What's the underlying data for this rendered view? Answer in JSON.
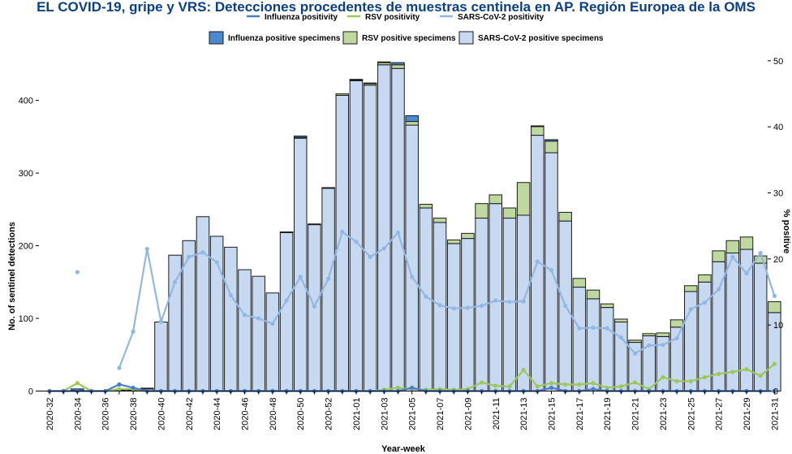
{
  "title": "EL COVID-19, gripe y VRS: Detecciones procedentes de muestras centinela en AP. Región Europea de la OMS",
  "chart_data": {
    "type": "bar",
    "stacked": true,
    "xlabel": "Year-week",
    "ylabel": "No. of sentinel detections",
    "y2label": "% positive",
    "ylim": [
      0,
      470
    ],
    "y2lim": [
      0,
      51.7
    ],
    "yticks": [
      0,
      100,
      200,
      300,
      400
    ],
    "y2ticks": [
      0,
      10,
      20,
      30,
      40,
      50
    ],
    "grid": false,
    "legend_position": "top",
    "x": [
      "2020-32",
      "2020-33",
      "2020-34",
      "2020-35",
      "2020-36",
      "2020-37",
      "2020-38",
      "2020-39",
      "2020-40",
      "2020-41",
      "2020-42",
      "2020-43",
      "2020-44",
      "2020-45",
      "2020-46",
      "2020-47",
      "2020-48",
      "2020-49",
      "2020-50",
      "2020-51",
      "2020-52",
      "2020-53",
      "2021-01",
      "2021-02",
      "2021-03",
      "2021-04",
      "2021-05",
      "2021-06",
      "2021-07",
      "2021-08",
      "2021-09",
      "2021-10",
      "2021-11",
      "2021-12",
      "2021-13",
      "2021-14",
      "2021-15",
      "2021-16",
      "2021-17",
      "2021-18",
      "2021-19",
      "2021-20",
      "2021-21",
      "2021-22",
      "2021-23",
      "2021-24",
      "2021-25",
      "2021-26",
      "2021-27",
      "2021-28",
      "2021-29",
      "2021-30",
      "2021-31"
    ],
    "xtick_labels": [
      "2020-32",
      "2020-34",
      "2020-36",
      "2020-38",
      "2020-40",
      "2020-42",
      "2020-44",
      "2020-46",
      "2020-48",
      "2020-50",
      "2020-52",
      "2021-01",
      "2021-03",
      "2021-05",
      "2021-07",
      "2021-09",
      "2021-11",
      "2021-13",
      "2021-15",
      "2021-17",
      "2021-19",
      "2021-21",
      "2021-23",
      "2021-25",
      "2021-27",
      "2021-29",
      "2021-31"
    ],
    "bar_series": [
      {
        "name": "Influenza positive specimens",
        "color": "#4a88d0",
        "values": [
          0,
          0,
          2,
          0,
          0,
          1,
          1,
          1,
          0,
          0,
          0,
          0,
          0,
          0,
          0,
          0,
          0,
          0,
          2,
          0,
          0,
          0,
          1,
          1,
          1,
          3,
          8,
          0,
          0,
          0,
          0,
          0,
          0,
          0,
          0,
          1,
          2,
          0,
          0,
          0,
          0,
          0,
          0,
          0,
          0,
          0,
          0,
          0,
          0,
          0,
          0,
          0,
          0
        ]
      },
      {
        "name": "RSV positive specimens",
        "color": "#bfd89f",
        "values": [
          0,
          0,
          0,
          0,
          0,
          0,
          0,
          0,
          0,
          0,
          0,
          0,
          0,
          0,
          0,
          0,
          0,
          1,
          1,
          1,
          1,
          2,
          1,
          2,
          3,
          5,
          5,
          5,
          6,
          5,
          7,
          20,
          12,
          14,
          45,
          12,
          16,
          12,
          12,
          12,
          5,
          4,
          3,
          3,
          5,
          10,
          8,
          10,
          15,
          17,
          17,
          10,
          15
        ]
      },
      {
        "name": "SARS-CoV-2 positive specimens",
        "color": "#c6d9f1",
        "values": [
          0,
          0,
          1,
          0,
          0,
          1,
          1,
          3,
          95,
          187,
          207,
          240,
          213,
          198,
          167,
          158,
          135,
          218,
          348,
          229,
          279,
          407,
          427,
          421,
          449,
          444,
          366,
          252,
          232,
          203,
          210,
          238,
          258,
          238,
          242,
          352,
          328,
          234,
          143,
          127,
          115,
          95,
          67,
          76,
          75,
          88,
          137,
          150,
          178,
          190,
          195,
          176,
          108
        ]
      }
    ],
    "line_series": [
      {
        "name": "Influenza positivity",
        "color": "#4a7cc9",
        "values": [
          0,
          0,
          0,
          0,
          0,
          1.0,
          0.5,
          0,
          0,
          0,
          0,
          0,
          0,
          0,
          0,
          0,
          0,
          0,
          0,
          0,
          0,
          0,
          0,
          0,
          0,
          0,
          0.5,
          0,
          0,
          0,
          0,
          0,
          0,
          0,
          0,
          0,
          0.5,
          0,
          0,
          0.3,
          0,
          0,
          0,
          0,
          0,
          0,
          0,
          0,
          0,
          0,
          0,
          0,
          0
        ]
      },
      {
        "name": "RSV positivity",
        "color": "#9cc75a",
        "values": [
          0,
          0,
          1.2,
          0,
          0,
          0.3,
          0.3,
          0,
          0,
          0,
          0,
          0,
          0,
          0,
          0,
          0,
          0,
          0,
          0,
          0,
          0,
          0,
          0,
          0,
          0.2,
          0.5,
          0.3,
          0.2,
          0.3,
          0.2,
          0.3,
          1.3,
          0.8,
          0.7,
          3.2,
          0.7,
          1.2,
          1.0,
          1.0,
          1.2,
          0.5,
          0.7,
          1.3,
          0.3,
          2.1,
          1.5,
          1.5,
          2.1,
          2.6,
          2.9,
          3.3,
          2.3,
          4.1
        ]
      },
      {
        "name": "SARS-CoV-2 positivity",
        "color": "#93b7e3",
        "values": [
          null,
          null,
          18.0,
          null,
          null,
          3.5,
          9.0,
          21.5,
          10.5,
          16.5,
          20.3,
          21.0,
          19.5,
          14.5,
          11.5,
          11.0,
          10.2,
          13.7,
          17.3,
          12.8,
          17.0,
          24.1,
          22.6,
          20.3,
          21.6,
          24.0,
          17.3,
          14.3,
          13.0,
          12.5,
          12.6,
          12.9,
          13.7,
          13.5,
          13.6,
          19.6,
          18.3,
          12.9,
          9.5,
          9.6,
          9.5,
          8.1,
          5.7,
          6.9,
          7.0,
          8.0,
          12.4,
          13.4,
          15.4,
          20.3,
          17.8,
          20.9,
          14.4
        ]
      }
    ]
  }
}
